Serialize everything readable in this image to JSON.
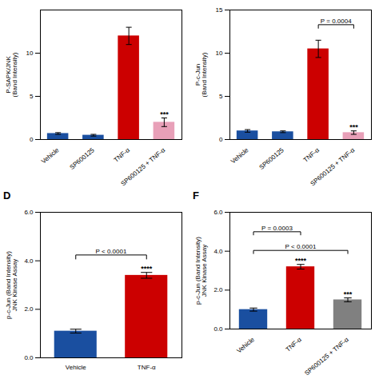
{
  "chart_data": [
    {
      "type": "bar",
      "ylabel": "P-SAPK/JNK\n(Band Intensity)",
      "categories": [
        "Vehicle",
        "SP600125",
        "TNF-α",
        "SP600125 + TNF-α"
      ],
      "values": [
        0.7,
        0.5,
        12.0,
        2.0
      ],
      "errors": [
        0.1,
        0.1,
        1.0,
        0.5
      ],
      "colors": [
        "#1a4fa0",
        "#1a4fa0",
        "#cc0000",
        "#e8a0b8"
      ],
      "ylim": [
        0,
        15
      ],
      "yticks": [
        0,
        5,
        10
      ],
      "annotations": [
        {
          "text": "***",
          "category": "SP600125 + TNF-α"
        }
      ]
    },
    {
      "type": "bar",
      "ylabel": "P-c-Jun\n(Band Intensity)",
      "categories": [
        "Vehicle",
        "SP600125",
        "TNF-α",
        "SP600125 + TNF-α"
      ],
      "values": [
        1.0,
        0.9,
        10.5,
        0.8
      ],
      "errors": [
        0.15,
        0.1,
        1.0,
        0.2
      ],
      "colors": [
        "#1a4fa0",
        "#1a4fa0",
        "#cc0000",
        "#e8a0b8"
      ],
      "ylim": [
        0,
        15
      ],
      "yticks": [
        0,
        5,
        10,
        15
      ],
      "annotations": [
        {
          "text": "P = 0.0004",
          "from": "TNF-α",
          "to": "SP600125 + TNF-α"
        },
        {
          "text": "***",
          "category": "SP600125 + TNF-α"
        }
      ]
    },
    {
      "type": "bar",
      "title": "D",
      "ylabel": "p-c-Jun (Band Intensity)\nJNK Kinase Assay",
      "categories": [
        "Vehicle",
        "TNF-α"
      ],
      "values": [
        1.1,
        3.4
      ],
      "errors": [
        0.08,
        0.12
      ],
      "colors": [
        "#1a4fa0",
        "#cc0000"
      ],
      "ylim": [
        0,
        6
      ],
      "yticks": [
        0,
        2,
        4,
        6
      ],
      "annotations": [
        {
          "text": "P < 0.0001",
          "from": "Vehicle",
          "to": "TNF-α"
        },
        {
          "text": "****",
          "category": "TNF-α"
        }
      ]
    },
    {
      "type": "bar",
      "title": "F",
      "ylabel": "p-c-Jun (Band Intensity)\nJNK Kinase Assay",
      "categories": [
        "Vehicle",
        "TNF-α",
        "SP600125 + TNF-α"
      ],
      "values": [
        1.0,
        3.2,
        1.5
      ],
      "errors": [
        0.08,
        0.12,
        0.1
      ],
      "colors": [
        "#1a4fa0",
        "#cc0000",
        "#808080"
      ],
      "ylim": [
        0,
        6
      ],
      "yticks": [
        0,
        2,
        4,
        6
      ],
      "annotations": [
        {
          "text": "P < 0.0001",
          "from": "Vehicle",
          "to": "SP600125 + TNF-α"
        },
        {
          "text": "P = 0.0003",
          "from": "Vehicle",
          "to": "TNF-α"
        },
        {
          "text": "****",
          "category": "TNF-α"
        },
        {
          "text": "***",
          "category": "SP600125 + TNF-α"
        }
      ]
    }
  ]
}
